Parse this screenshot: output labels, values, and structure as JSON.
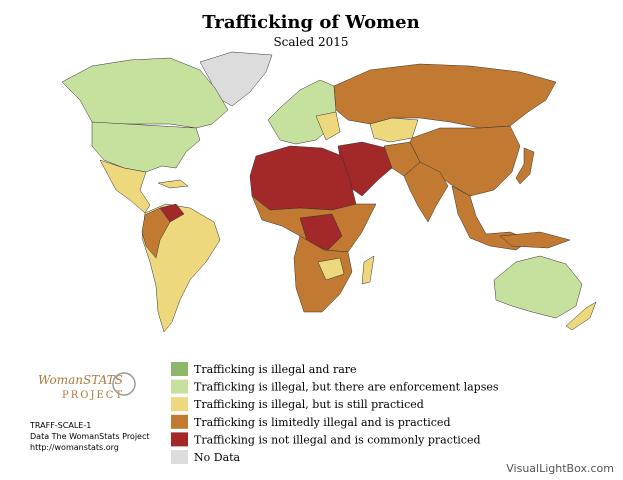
{
  "title": "Trafficking of Women",
  "subtitle": "Scaled 2015",
  "legend": [
    {
      "label": "Trafficking is illegal and rare",
      "color": "#8db86b"
    },
    {
      "label": "Trafficking is illegal, but there are enforcement lapses",
      "color": "#c6e09d"
    },
    {
      "label": "Trafficking is illegal, but is still practiced",
      "color": "#edd87d"
    },
    {
      "label": "Trafficking is limitedly illegal and is practiced",
      "color": "#c27a32"
    },
    {
      "label": "Trafficking is not illegal and is commonly practiced",
      "color": "#a3282a"
    },
    {
      "label": "No Data",
      "color": "#dcdcdc"
    }
  ],
  "logo": {
    "top": "WomanSTATS",
    "bottom": "PROJECT"
  },
  "footer": [
    "TRAFF-SCALE-1",
    "Data The WomanStats Project",
    "http://womanstats.org"
  ],
  "watermark": "VisualLightBox.com"
}
